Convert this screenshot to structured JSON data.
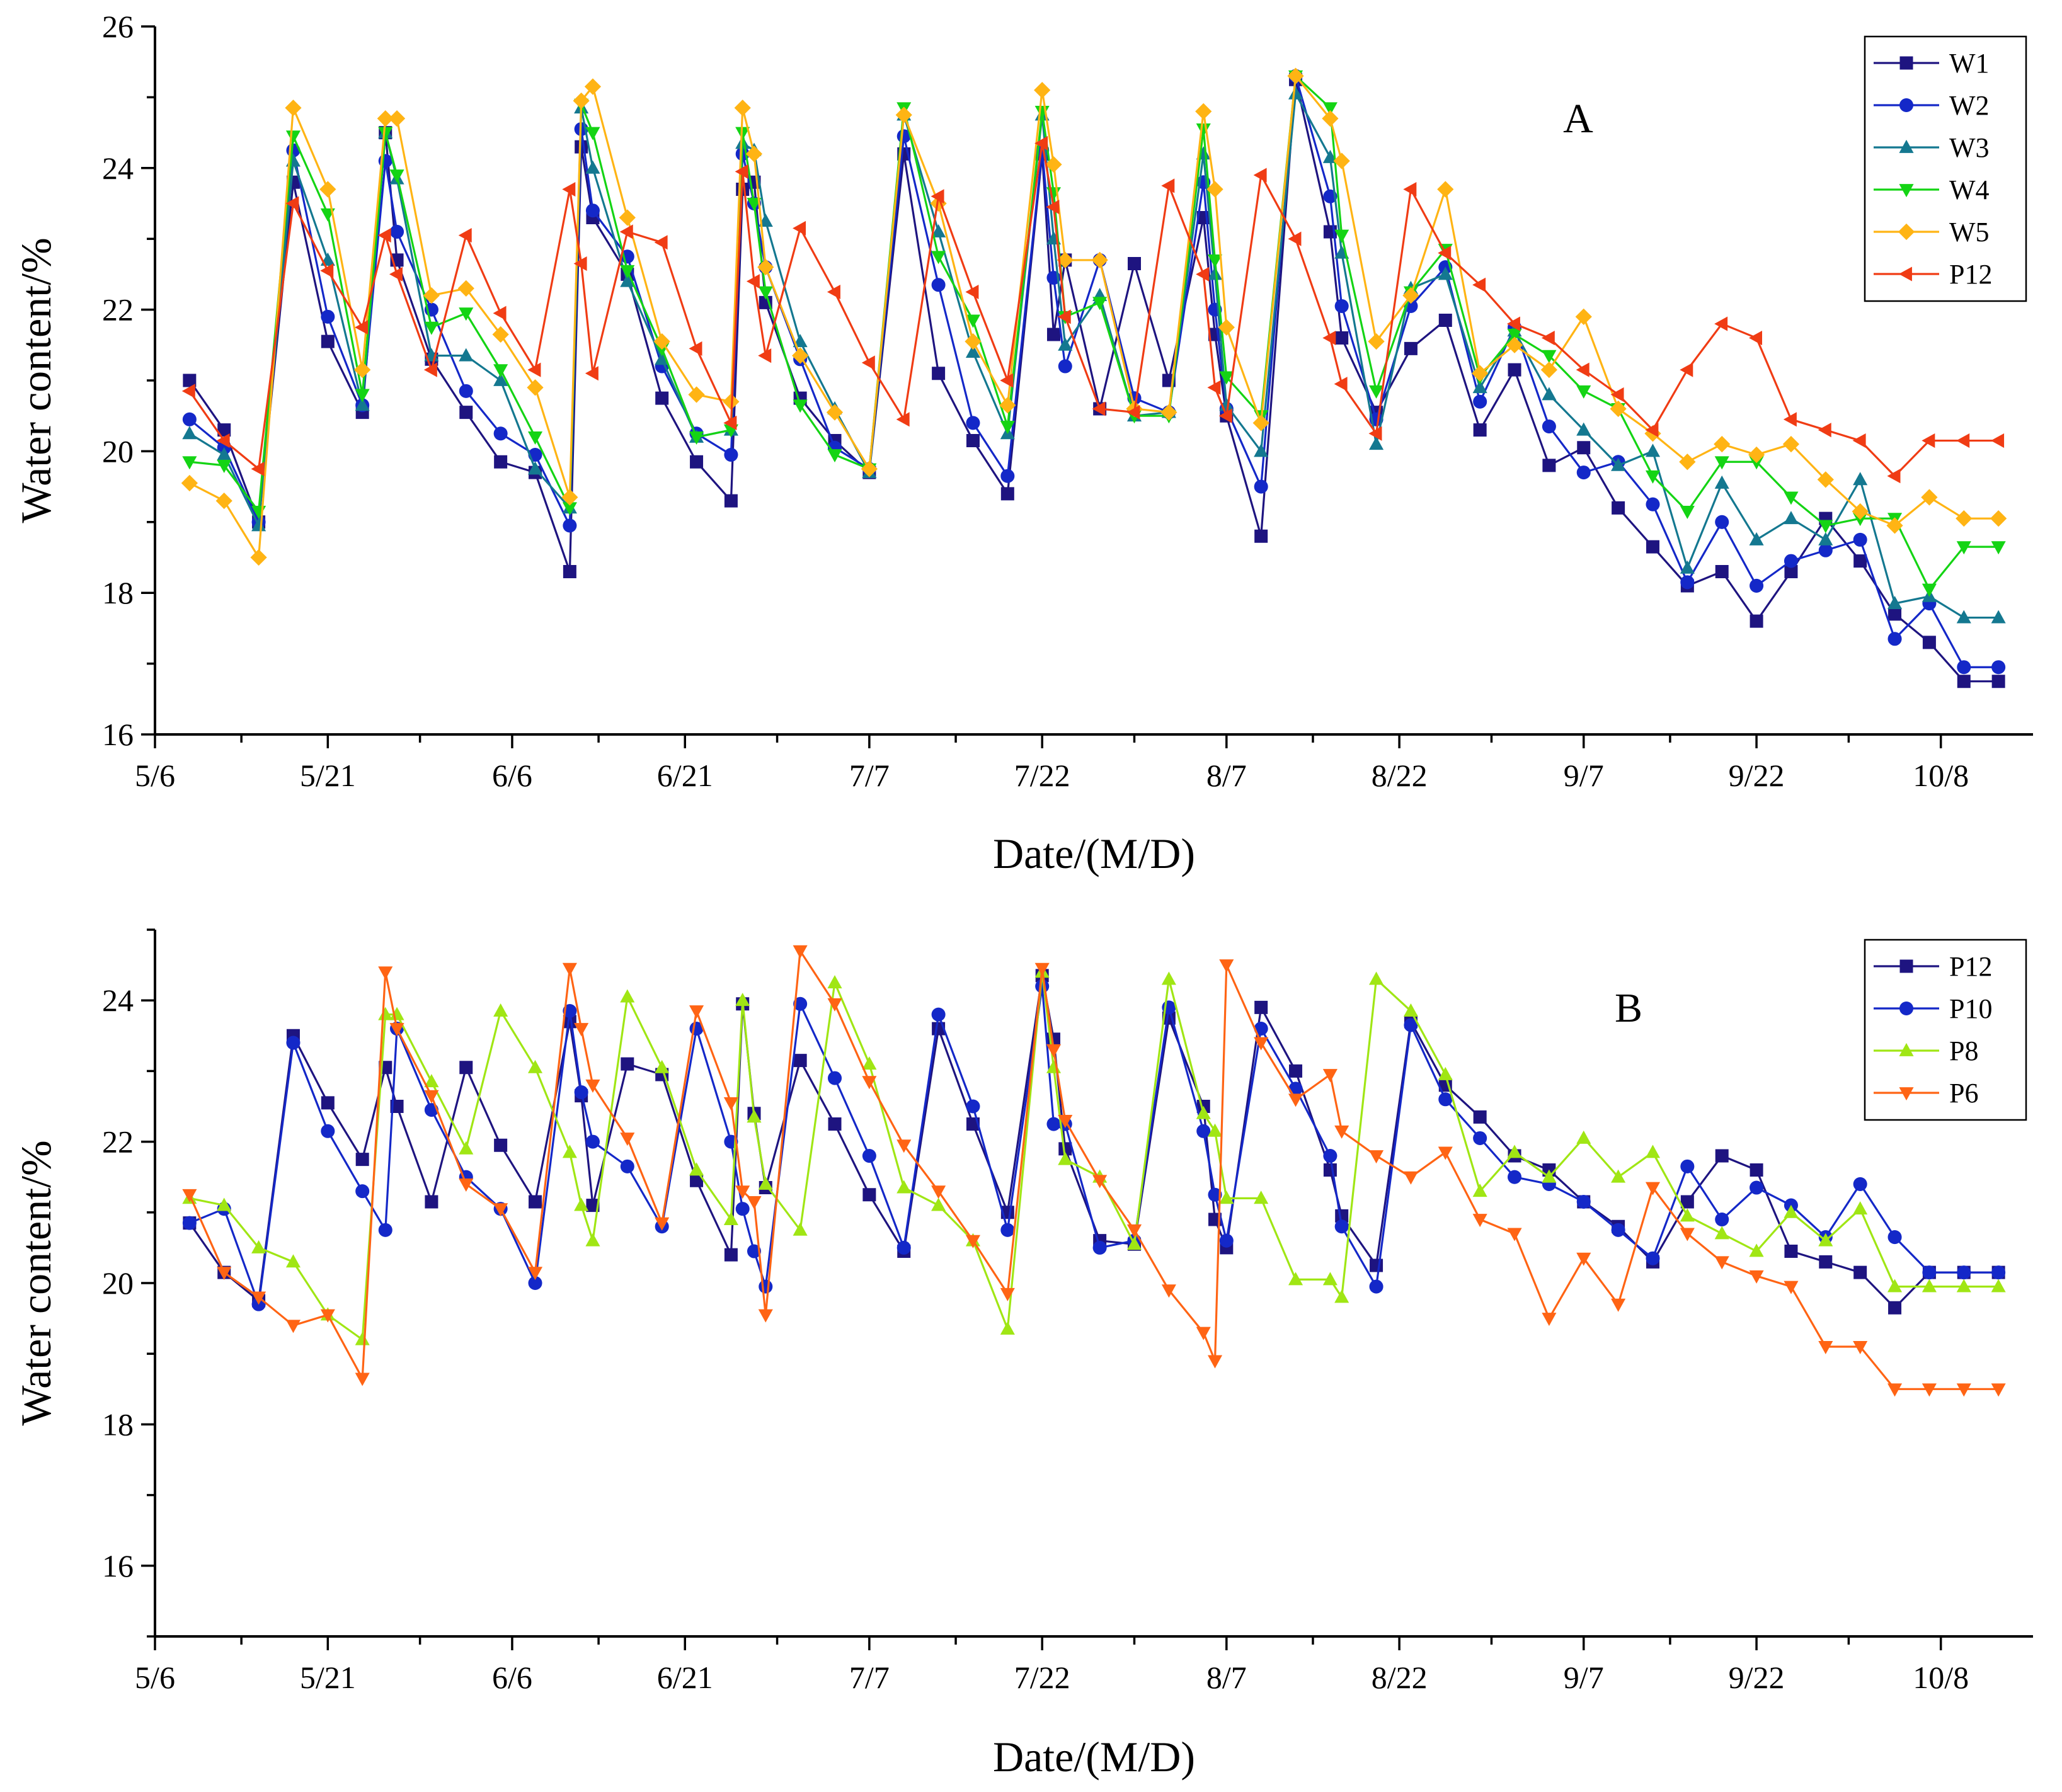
{
  "chart_data": [
    {
      "type": "line",
      "panel_label": "A",
      "xlabel": "Date/(M/D)",
      "ylabel": "Water content/%",
      "x_tick_labels": [
        "5/6",
        "5/21",
        "6/6",
        "6/21",
        "7/7",
        "7/22",
        "8/7",
        "8/22",
        "9/7",
        "9/22",
        "10/8"
      ],
      "x_tick_positions": [
        0,
        15,
        31,
        46,
        62,
        77,
        93,
        108,
        124,
        139,
        155
      ],
      "ylim": [
        16,
        26
      ],
      "y_ticks": [
        16,
        18,
        20,
        22,
        24,
        26
      ],
      "legend_position": "top-right",
      "x": [
        3,
        6,
        9,
        12,
        15,
        18,
        20,
        21,
        24,
        27,
        30,
        33,
        36,
        37,
        38,
        41,
        44,
        47,
        50,
        51,
        52,
        53,
        56,
        59,
        62,
        65,
        68,
        71,
        74,
        77,
        78,
        79,
        82,
        85,
        88,
        91,
        92,
        93,
        96,
        99,
        102,
        103,
        106,
        109,
        112,
        115,
        118,
        121,
        124,
        127,
        130,
        133,
        136,
        139,
        142,
        145,
        148,
        151,
        154,
        157,
        160
      ],
      "series": [
        {
          "name": "W1",
          "color": "#1e1480",
          "marker": "square",
          "values": [
            21.0,
            20.3,
            19.0,
            23.8,
            21.55,
            20.55,
            24.5,
            22.7,
            21.3,
            20.55,
            19.85,
            19.7,
            18.3,
            24.3,
            23.3,
            22.5,
            20.75,
            19.85,
            19.3,
            23.7,
            23.8,
            22.1,
            20.75,
            20.15,
            19.7,
            24.2,
            21.1,
            20.15,
            19.4,
            24.2,
            21.65,
            22.7,
            20.6,
            22.65,
            21.0,
            23.3,
            21.65,
            20.5,
            18.8,
            25.25,
            23.1,
            21.6,
            20.55,
            21.45,
            21.85,
            20.3,
            21.15,
            19.8,
            20.05,
            19.2,
            18.65,
            18.1,
            18.3,
            17.6,
            18.3,
            19.05,
            18.45,
            17.7,
            17.3,
            16.75,
            16.75
          ]
        },
        {
          "name": "W2",
          "color": "#1428c8",
          "marker": "circle",
          "values": [
            20.45,
            20.05,
            19.0,
            24.25,
            21.9,
            20.65,
            24.1,
            23.1,
            22.0,
            20.85,
            20.25,
            19.95,
            18.95,
            24.55,
            23.4,
            22.75,
            21.2,
            20.25,
            19.95,
            24.2,
            23.5,
            22.6,
            21.3,
            20.05,
            19.75,
            24.45,
            22.35,
            20.4,
            19.65,
            24.25,
            22.45,
            21.2,
            22.7,
            20.75,
            20.55,
            23.8,
            22.0,
            20.6,
            19.5,
            25.3,
            23.6,
            22.05,
            20.45,
            22.05,
            22.6,
            20.7,
            21.75,
            20.35,
            19.7,
            19.85,
            19.25,
            18.15,
            19.0,
            18.1,
            18.45,
            18.6,
            18.75,
            17.35,
            17.85,
            16.95,
            16.95
          ]
        },
        {
          "name": "W3",
          "color": "#147890",
          "marker": "triangle-up",
          "values": [
            20.25,
            19.95,
            18.95,
            24.1,
            22.7,
            20.65,
            24.5,
            23.85,
            21.35,
            21.35,
            21.0,
            19.75,
            19.2,
            24.85,
            24.0,
            22.4,
            21.3,
            20.2,
            20.3,
            24.35,
            24.25,
            23.25,
            21.55,
            20.6,
            19.7,
            24.75,
            23.1,
            21.4,
            20.25,
            24.75,
            23.0,
            21.5,
            22.2,
            20.5,
            20.55,
            24.2,
            22.5,
            20.65,
            20.0,
            25.05,
            24.15,
            22.8,
            20.1,
            22.3,
            22.5,
            20.9,
            21.7,
            20.8,
            20.3,
            19.8,
            20.0,
            18.35,
            19.55,
            18.75,
            19.05,
            18.75,
            19.6,
            17.85,
            17.95,
            17.65,
            17.65
          ]
        },
        {
          "name": "W4",
          "color": "#14d414",
          "marker": "triangle-down",
          "values": [
            19.85,
            19.8,
            19.15,
            24.45,
            23.35,
            20.8,
            24.5,
            23.9,
            21.75,
            21.95,
            21.15,
            20.2,
            19.2,
            24.9,
            24.5,
            22.55,
            21.45,
            20.2,
            20.3,
            24.5,
            23.5,
            22.25,
            20.65,
            19.95,
            19.75,
            24.85,
            22.75,
            21.85,
            20.35,
            24.8,
            23.65,
            21.9,
            22.1,
            20.5,
            20.5,
            24.55,
            22.7,
            21.05,
            20.5,
            25.3,
            24.85,
            23.05,
            20.85,
            22.25,
            22.85,
            21.05,
            21.65,
            21.35,
            20.85,
            20.6,
            19.65,
            19.15,
            19.85,
            19.85,
            19.35,
            18.95,
            19.05,
            19.05,
            18.05,
            18.65,
            18.65
          ]
        },
        {
          "name": "W5",
          "color": "#ffb414",
          "marker": "diamond",
          "values": [
            19.55,
            19.3,
            18.5,
            24.85,
            23.7,
            21.15,
            24.7,
            24.7,
            22.2,
            22.3,
            21.65,
            20.9,
            19.35,
            24.95,
            25.15,
            23.3,
            21.55,
            20.8,
            20.7,
            24.85,
            24.2,
            22.6,
            21.35,
            20.55,
            19.75,
            24.75,
            23.5,
            21.55,
            20.65,
            25.1,
            24.05,
            22.7,
            22.7,
            20.6,
            20.55,
            24.8,
            23.7,
            21.75,
            20.4,
            25.3,
            24.7,
            24.1,
            21.55,
            22.2,
            23.7,
            21.1,
            21.5,
            21.15,
            21.9,
            20.6,
            20.25,
            19.85,
            20.1,
            19.95,
            20.1,
            19.6,
            19.15,
            18.95,
            19.35,
            19.05,
            19.05
          ]
        },
        {
          "name": "P12",
          "color": "#f03c14",
          "marker": "triangle-left",
          "values": [
            20.85,
            20.15,
            19.75,
            23.5,
            22.55,
            21.75,
            23.05,
            22.5,
            21.15,
            23.05,
            21.95,
            21.15,
            23.7,
            22.65,
            21.1,
            23.1,
            22.95,
            21.45,
            20.4,
            23.95,
            22.4,
            21.35,
            23.15,
            22.25,
            21.25,
            20.45,
            23.6,
            22.25,
            21.0,
            24.35,
            23.45,
            21.9,
            20.6,
            20.55,
            23.75,
            22.5,
            20.9,
            20.5,
            23.9,
            23.0,
            21.6,
            20.95,
            20.25,
            23.7,
            22.8,
            22.35,
            21.8,
            21.6,
            21.15,
            20.8,
            20.3,
            21.15,
            21.8,
            21.6,
            20.45,
            20.3,
            20.15,
            19.65,
            20.15,
            20.15,
            20.15
          ]
        }
      ]
    },
    {
      "type": "line",
      "panel_label": "B",
      "xlabel": "Date/(M/D)",
      "ylabel": "Water content/%",
      "x_tick_labels": [
        "5/6",
        "5/21",
        "6/6",
        "6/21",
        "7/7",
        "7/22",
        "8/7",
        "8/22",
        "9/7",
        "9/22",
        "10/8"
      ],
      "x_tick_positions": [
        0,
        15,
        31,
        46,
        62,
        77,
        93,
        108,
        124,
        139,
        155
      ],
      "ylim": [
        15,
        25
      ],
      "y_ticks": [
        16,
        18,
        20,
        22,
        24
      ],
      "legend_position": "top-right",
      "x": [
        3,
        6,
        9,
        12,
        15,
        18,
        20,
        21,
        24,
        27,
        30,
        33,
        36,
        37,
        38,
        41,
        44,
        47,
        50,
        51,
        52,
        53,
        56,
        59,
        62,
        65,
        68,
        71,
        74,
        77,
        78,
        79,
        82,
        85,
        88,
        91,
        92,
        93,
        96,
        99,
        102,
        103,
        106,
        109,
        112,
        115,
        118,
        121,
        124,
        127,
        130,
        133,
        136,
        139,
        142,
        145,
        148,
        151,
        154,
        157,
        160
      ],
      "series": [
        {
          "name": "P12",
          "color": "#1e1480",
          "marker": "square",
          "values": [
            20.85,
            20.15,
            19.75,
            23.5,
            22.55,
            21.75,
            23.05,
            22.5,
            21.15,
            23.05,
            21.95,
            21.15,
            23.7,
            22.65,
            21.1,
            23.1,
            22.95,
            21.45,
            20.4,
            23.95,
            22.4,
            21.35,
            23.15,
            22.25,
            21.25,
            20.45,
            23.6,
            22.25,
            21.0,
            24.35,
            23.45,
            21.9,
            20.6,
            20.55,
            23.75,
            22.5,
            20.9,
            20.5,
            23.9,
            23.0,
            21.6,
            20.95,
            20.25,
            23.7,
            22.8,
            22.35,
            21.8,
            21.6,
            21.15,
            20.8,
            20.3,
            21.15,
            21.8,
            21.6,
            20.45,
            20.3,
            20.15,
            19.65,
            20.15,
            20.15,
            20.15
          ]
        },
        {
          "name": "P10",
          "color": "#1428c8",
          "marker": "circle",
          "values": [
            20.85,
            21.05,
            19.7,
            23.4,
            22.15,
            21.3,
            20.75,
            23.6,
            22.45,
            21.5,
            21.05,
            20.0,
            23.85,
            22.7,
            22.0,
            21.65,
            20.8,
            23.6,
            22.0,
            21.05,
            20.45,
            19.95,
            23.95,
            22.9,
            21.8,
            20.5,
            23.8,
            22.5,
            20.75,
            24.2,
            22.25,
            22.25,
            20.5,
            20.6,
            23.9,
            22.15,
            21.25,
            20.6,
            23.6,
            22.75,
            21.8,
            20.8,
            19.95,
            23.65,
            22.6,
            22.05,
            21.5,
            21.4,
            21.15,
            20.75,
            20.35,
            21.65,
            20.9,
            21.35,
            21.1,
            20.65,
            21.4,
            20.65,
            20.15,
            20.15,
            20.15
          ]
        },
        {
          "name": "P8",
          "color": "#a0e614",
          "marker": "triangle-up",
          "values": [
            21.2,
            21.1,
            20.5,
            20.3,
            19.55,
            19.2,
            23.8,
            23.8,
            22.85,
            21.9,
            23.85,
            23.05,
            21.85,
            21.1,
            20.6,
            24.05,
            23.05,
            21.6,
            20.9,
            24.0,
            22.35,
            21.4,
            20.75,
            24.25,
            23.1,
            21.35,
            21.1,
            20.6,
            19.35,
            24.4,
            23.05,
            21.75,
            21.5,
            20.55,
            24.3,
            22.4,
            22.15,
            21.2,
            21.2,
            20.05,
            20.05,
            19.8,
            24.3,
            23.85,
            22.95,
            21.3,
            21.85,
            21.5,
            22.05,
            21.5,
            21.85,
            20.95,
            20.7,
            20.45,
            21.0,
            20.6,
            21.05,
            19.95,
            19.95,
            19.95,
            19.95
          ]
        },
        {
          "name": "P6",
          "color": "#ff6414",
          "marker": "triangle-down",
          "values": [
            21.25,
            20.15,
            19.8,
            19.4,
            19.55,
            18.65,
            24.4,
            23.6,
            22.65,
            21.4,
            21.05,
            20.15,
            24.45,
            23.6,
            22.8,
            22.05,
            20.85,
            23.85,
            22.55,
            21.3,
            21.15,
            19.55,
            24.7,
            23.95,
            22.85,
            21.95,
            21.3,
            20.6,
            19.85,
            24.45,
            23.3,
            22.3,
            21.45,
            20.75,
            19.9,
            19.3,
            18.9,
            24.5,
            23.4,
            22.6,
            22.95,
            22.15,
            21.8,
            21.5,
            21.85,
            20.9,
            20.7,
            19.5,
            20.35,
            19.7,
            21.35,
            20.7,
            20.3,
            20.1,
            19.95,
            19.1,
            19.1,
            18.5,
            18.5,
            18.5,
            18.5
          ]
        }
      ]
    }
  ]
}
